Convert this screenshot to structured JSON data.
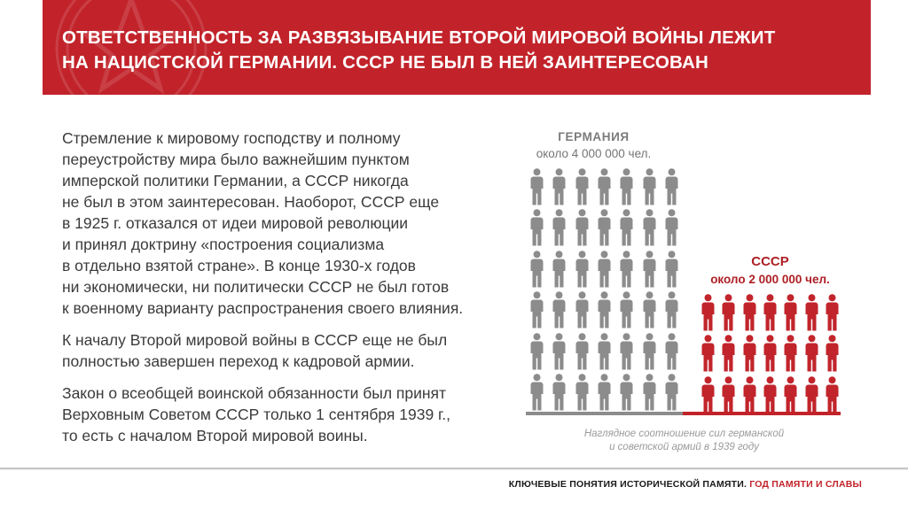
{
  "header": {
    "title_line1": "ОТВЕТСТВЕННОСТЬ ЗА РАЗВЯЗЫВАНИЕ ВТОРОЙ МИРОВОЙ ВОЙНЫ ЛЕЖИТ",
    "title_line2": "НА НАЦИСТСКОЙ ГЕРМАНИИ. СССР НЕ БЫЛ В НЕЙ ЗАИНТЕРЕСОВАН",
    "background_color": "#c2232a",
    "emblem_icon": "star-in-circle-watermark"
  },
  "body": {
    "paragraphs": [
      {
        "lines": [
          "Стремление к мировому господству и полному",
          "переустройству мира было важнейшим пунктом",
          "имперской политики Германии, а СССР никогда",
          "не был в этом заинтересован. Наоборот, СССР еще",
          "в 1925 г. отказался от идеи мировой революции",
          "и принял доктрину «построения социализма",
          "в отдельно взятой стране». В конце 1930-х годов",
          "ни экономически, ни политически СССР не был готов",
          "к военному варианту распространения своего влияния."
        ]
      },
      {
        "lines": [
          "К началу Второй мировой войны в СССР еще не был",
          "полностью завершен переход к кадровой армии."
        ]
      },
      {
        "lines": [
          "Закон о всеобщей воинской обязанности был принят",
          "Верховным Советом СССР только 1 сентября 1939 г.,",
          "то есть с началом Второй мировой воины."
        ]
      }
    ]
  },
  "chart_data": {
    "type": "pictogram",
    "title": "Наглядное соотношение сил германской и советской армий в 1939 году",
    "unit": "чел.",
    "groups": [
      {
        "name": "ГЕРМАНИЯ",
        "value_label": "около 4 000 000 чел.",
        "value": 4000000,
        "icon_count": 42,
        "rows": 6,
        "cols": 7,
        "color": "#8c8c8c"
      },
      {
        "name": "СССР",
        "value_label": "около 2 000 000 чел.",
        "value": 2000000,
        "icon_count": 21,
        "rows": 3,
        "cols": 7,
        "color": "#c2242b"
      }
    ],
    "caption_line1": "Наглядное соотношение сил германской",
    "caption_line2": "и советской армий в 1939 году"
  },
  "footer": {
    "text_black": "КЛЮЧЕВЫЕ ПОНЯТИЯ ИСТОРИЧЕСКОЙ ПАМЯТИ.",
    "text_red": " ГОД ПАМЯТИ И СЛАВЫ"
  }
}
